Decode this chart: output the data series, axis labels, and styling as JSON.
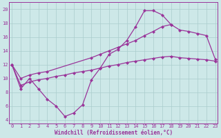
{
  "xlabel": "Windchill (Refroidissement éolien,°C)",
  "bg_color": "#cde8e8",
  "grid_color": "#aacccc",
  "line_color": "#993399",
  "ylim": [
    3.5,
    21.0
  ],
  "xlim": [
    -0.3,
    23.3
  ],
  "yticks": [
    4,
    6,
    8,
    10,
    12,
    14,
    16,
    18,
    20
  ],
  "xticks": [
    0,
    1,
    2,
    3,
    4,
    5,
    6,
    7,
    8,
    9,
    10,
    11,
    12,
    13,
    14,
    15,
    16,
    17,
    18,
    19,
    20,
    21,
    22,
    23
  ],
  "line1_x": [
    0,
    1,
    2,
    3,
    4,
    5,
    6,
    7,
    8,
    9,
    10,
    11,
    12,
    13,
    14,
    15,
    16,
    17,
    18
  ],
  "line1_y": [
    12,
    8.5,
    10.0,
    8.5,
    7.0,
    6.0,
    4.5,
    5.0,
    6.2,
    9.8,
    11.5,
    13.5,
    14.2,
    15.5,
    17.5,
    19.8,
    19.8,
    19.2,
    17.8
  ],
  "line2_x": [
    0,
    1,
    2,
    3,
    4,
    9,
    10,
    11,
    12,
    13,
    14,
    15,
    16,
    17,
    18,
    19,
    20,
    21,
    22,
    23
  ],
  "line2_y": [
    12,
    10.0,
    10.5,
    10.8,
    11.0,
    13.0,
    13.5,
    14.0,
    14.5,
    15.0,
    15.5,
    16.2,
    16.8,
    17.5,
    17.8,
    17.0,
    16.8,
    16.5,
    16.2,
    12.8
  ],
  "line3_x": [
    0,
    1,
    2,
    3,
    4,
    5,
    6,
    7,
    8,
    9,
    10,
    11,
    12,
    13,
    14,
    15,
    16,
    17,
    18,
    19,
    20,
    21,
    22,
    23
  ],
  "line3_y": [
    12,
    9.0,
    9.5,
    9.8,
    10.0,
    10.3,
    10.5,
    10.8,
    11.0,
    11.2,
    11.5,
    11.8,
    12.0,
    12.3,
    12.5,
    12.7,
    12.9,
    13.1,
    13.2,
    13.0,
    12.9,
    12.8,
    12.7,
    12.5
  ]
}
